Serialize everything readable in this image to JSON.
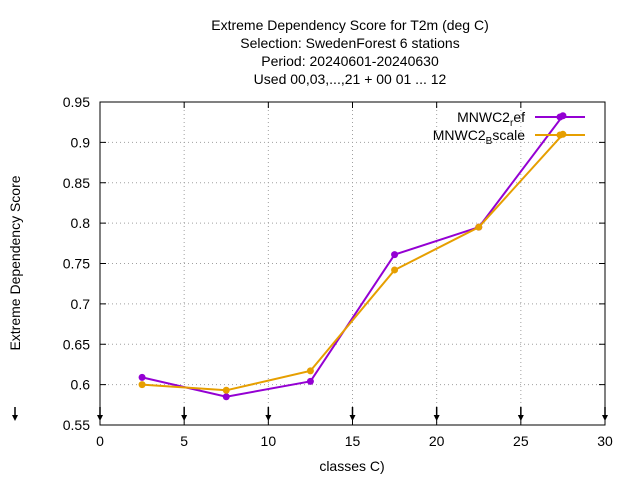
{
  "chart_data": {
    "type": "line",
    "title_lines": [
      "Extreme Dependency Score  for T2m (deg C)",
      "Selection: SwedenForest      6 stations",
      "Period: 20240601-20240630",
      "Used 00,03,...,21 + 00 01 ... 12"
    ],
    "xlabel": "classes C)",
    "ylabel": "Extreme Dependency Score",
    "xlim": [
      0,
      30
    ],
    "ylim": [
      0.55,
      0.95
    ],
    "xticks": [
      0,
      5,
      10,
      15,
      20,
      25,
      30
    ],
    "yticks": [
      0.55,
      0.6,
      0.65,
      0.7,
      0.75,
      0.8,
      0.85,
      0.9,
      0.95
    ],
    "grid": true,
    "legend_position": "top-right",
    "series": [
      {
        "name": "MNWC2_ref",
        "legend_main": "MNWC2",
        "legend_sub": "r",
        "legend_tail": "ef",
        "color": "#9400d3",
        "x": [
          2.5,
          7.5,
          12.5,
          17.5,
          22.5,
          27.5
        ],
        "y": [
          0.609,
          0.585,
          0.604,
          0.761,
          0.795,
          0.933
        ]
      },
      {
        "name": "MNWC2_Bscale",
        "legend_main": "MNWC2",
        "legend_sub": "B",
        "legend_tail": "scale",
        "color": "#e69f00",
        "x": [
          2.5,
          7.5,
          12.5,
          17.5,
          22.5,
          27.5
        ],
        "y": [
          0.6,
          0.593,
          0.617,
          0.742,
          0.795,
          0.91
        ]
      }
    ]
  }
}
